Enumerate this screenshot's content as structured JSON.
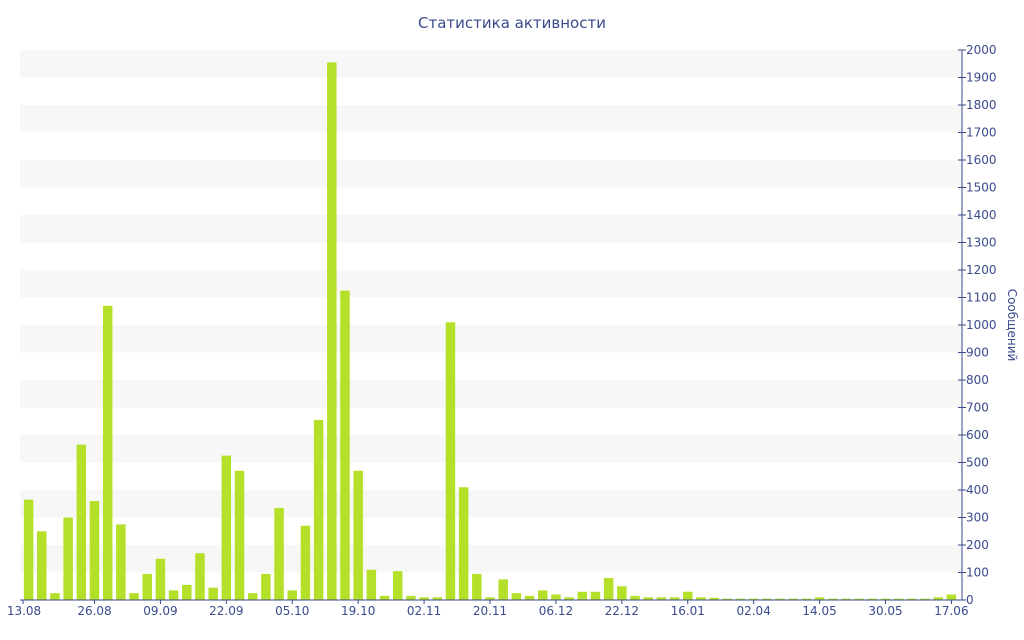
{
  "chart_data": {
    "type": "bar",
    "title": "Статистика активности",
    "ylabel": "Сообщений",
    "xlabel": "",
    "ylim": [
      0,
      2000
    ],
    "y_ticks": [
      0,
      100,
      200,
      300,
      400,
      500,
      600,
      700,
      800,
      900,
      1000,
      1100,
      1200,
      1300,
      1400,
      1500,
      1600,
      1700,
      1800,
      1900,
      2000
    ],
    "y_axis_side": "right",
    "grid": "alternating horizontal bands",
    "bar_color": "#b5e02a",
    "band_color": "#f7f7f7",
    "text_color": "#3a4a8c",
    "x_tick_labels": [
      "13.08",
      "26.08",
      "09.09",
      "22.09",
      "05.10",
      "19.10",
      "02.11",
      "20.11",
      "06.12",
      "22.12",
      "16.01",
      "02.04",
      "14.05",
      "30.05",
      "17.06"
    ],
    "x_tick_positions": [
      0,
      5,
      10,
      15,
      20,
      25,
      30,
      35,
      40,
      45,
      50,
      55,
      60,
      65,
      70
    ],
    "values": [
      365,
      250,
      25,
      300,
      565,
      360,
      1070,
      275,
      25,
      95,
      150,
      35,
      55,
      170,
      45,
      525,
      470,
      25,
      95,
      335,
      35,
      270,
      655,
      1955,
      1125,
      470,
      110,
      15,
      105,
      15,
      10,
      10,
      1010,
      410,
      95,
      10,
      75,
      25,
      15,
      35,
      20,
      10,
      30,
      30,
      80,
      50,
      15,
      10,
      10,
      10,
      30,
      10,
      8,
      5,
      5,
      5,
      5,
      5,
      5,
      5,
      10,
      5,
      5,
      5,
      5,
      5,
      5,
      5,
      5,
      10,
      20
    ]
  }
}
